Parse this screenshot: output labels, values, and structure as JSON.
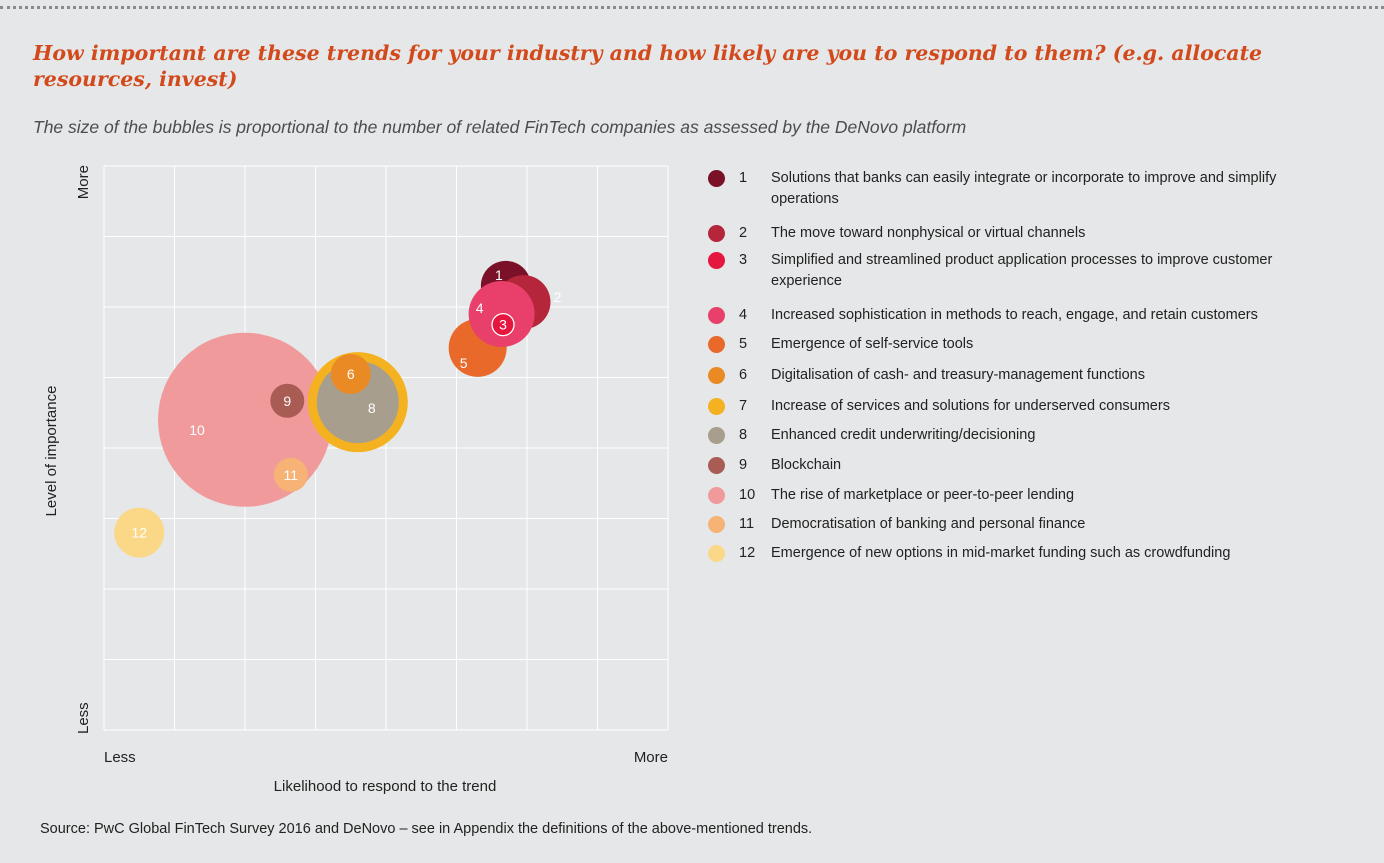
{
  "title": "How important are these trends for your industry and how likely are you to respond to them? (e.g. allocate resources, invest)",
  "subtitle": "The size of the bubbles is proportional to the number of related FinTech companies as assessed by the DeNovo platform",
  "source": "Source: PwC Global FinTech Survey 2016 and DeNovo – see in Appendix the definitions of the above-mentioned trends.",
  "colors": {
    "background": "#e6e7e8",
    "title": "#d24a1b",
    "grid": "#ffffff"
  },
  "chart_data": {
    "type": "scatter",
    "subtype": "bubble",
    "xlabel": "Likelihood to respond to the trend",
    "ylabel": "Level of importance",
    "x_tick_labels": {
      "min": "Less",
      "max": "More"
    },
    "y_tick_labels": {
      "min": "Less",
      "max": "More"
    },
    "xlim": [
      0,
      8
    ],
    "ylim": [
      0,
      8
    ],
    "grid": true,
    "legend_position": "right",
    "series": [
      {
        "id": "1",
        "label_text": "1",
        "name": "Solutions that banks can easily integrate or incorporate to improve and simplify operations",
        "x": 5.7,
        "y": 6.3,
        "size": 25,
        "color": "#7a1128"
      },
      {
        "id": "2",
        "label_text": "2",
        "name": "The move toward nonphysical or virtual channels",
        "x": 5.95,
        "y": 6.07,
        "size": 27,
        "color": "#b5263a"
      },
      {
        "id": "3",
        "label_text": "3",
        "name": "Simplified and streamlined product application processes to improve customer experience",
        "x": 5.66,
        "y": 5.75,
        "size": 11,
        "color": "#e5173f",
        "outline": true
      },
      {
        "id": "4",
        "label_text": "4",
        "name": "Increased sophistication in methods to reach, engage, and retain customers",
        "x": 5.64,
        "y": 5.9,
        "size": 33,
        "color": "#e8406a"
      },
      {
        "id": "5",
        "label_text": "5",
        "name": "Emergence of self-service tools",
        "x": 5.3,
        "y": 5.42,
        "size": 29,
        "color": "#e8692a"
      },
      {
        "id": "6",
        "label_text": "6",
        "name": "Digitalisation of cash- and treasury-management functions",
        "x": 3.5,
        "y": 5.05,
        "size": 20,
        "color": "#ea8a24"
      },
      {
        "id": "7",
        "label_text": "7",
        "name": "Increase of services and solutions for underserved consumers",
        "x": 3.6,
        "y": 4.65,
        "size": 50,
        "color": "#f4b120"
      },
      {
        "id": "8",
        "label_text": "8",
        "name": "Enhanced credit underwriting/decisioning",
        "x": 3.6,
        "y": 4.65,
        "size": 41,
        "color": "#a89e8e"
      },
      {
        "id": "9",
        "label_text": "9",
        "name": "Blockchain",
        "x": 2.6,
        "y": 4.67,
        "size": 17,
        "color": "#a85c53"
      },
      {
        "id": "10",
        "label_text": "10",
        "name": "The rise of marketplace or peer-to-peer lending",
        "x": 2.0,
        "y": 4.4,
        "size": 87,
        "color": "#f09a9c"
      },
      {
        "id": "11",
        "label_text": "11",
        "name": "Democratisation of banking and personal finance",
        "x": 2.65,
        "y": 3.62,
        "size": 17,
        "color": "#f6b375"
      },
      {
        "id": "12",
        "label_text": "12",
        "name": "Emergence of new options in mid-market funding such as crowdfunding",
        "x": 0.5,
        "y": 2.8,
        "size": 25,
        "color": "#fbd888"
      }
    ]
  }
}
